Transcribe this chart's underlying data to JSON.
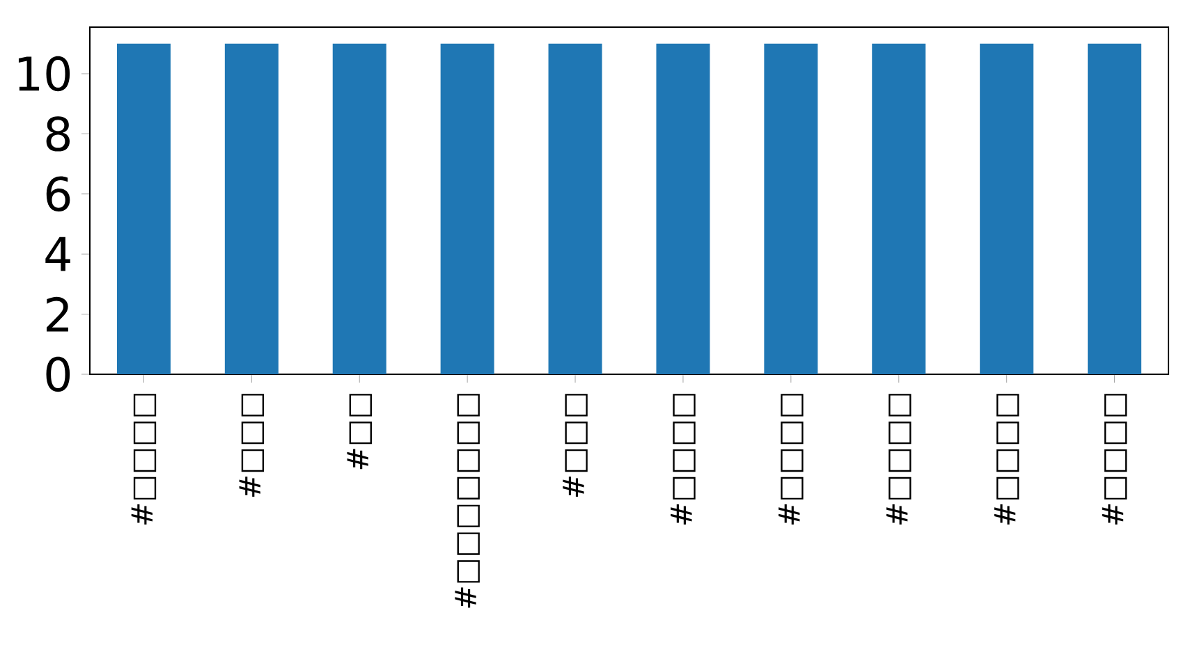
{
  "chart_data": {
    "type": "bar",
    "categories": [
      "#□□□□",
      "#□□□",
      "#□□",
      "#□□□□□□□",
      "#□□□",
      "#□□□□",
      "#□□□□",
      "#□□□□",
      "#□□□□",
      "#□□□□"
    ],
    "values": [
      11,
      11,
      11,
      11,
      11,
      11,
      11,
      11,
      11,
      11
    ],
    "color": "#1f77b4",
    "ylim": [
      0,
      11.55
    ],
    "yticks": [
      0,
      2,
      4,
      6,
      8,
      10
    ],
    "grid": false
  }
}
